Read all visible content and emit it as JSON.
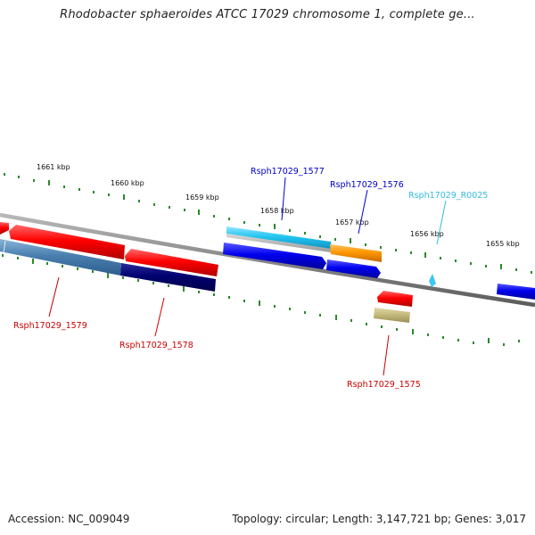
{
  "title": "Rhodobacter sphaeroides ATCC 17029 chromosome 1, complete ge...",
  "footer": {
    "accession": "Accession: NC_009049",
    "summary": "Topology: circular; Length: 3,147,721 bp; Genes: 3,017"
  },
  "ruler": [
    "1661 kbp",
    "1660 kbp",
    "1659 kbp",
    "1658 kbp",
    "1657 kbp",
    "1656 kbp",
    "1655 kbp"
  ],
  "genes": [
    {
      "name": "Rsph17029_1579",
      "color": "#cc0000"
    },
    {
      "name": "Rsph17029_1578",
      "color": "#cc0000"
    },
    {
      "name": "Rsph17029_1577",
      "color": "#0000cc"
    },
    {
      "name": "Rsph17029_1576",
      "color": "#0000cc"
    },
    {
      "name": "Rsph17029_R0025",
      "color": "#33bbdd"
    },
    {
      "name": "Rsph17029_1575",
      "color": "#cc0000"
    }
  ]
}
